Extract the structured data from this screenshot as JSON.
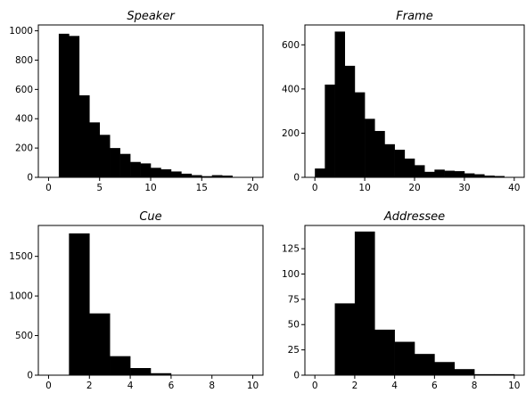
{
  "chart_data": [
    {
      "type": "bar",
      "title": "Speaker",
      "xlim": [
        -1,
        21
      ],
      "ylim": [
        0,
        1040
      ],
      "xticks": [
        0,
        5,
        10,
        15,
        20
      ],
      "yticks": [
        0,
        200,
        400,
        600,
        800,
        1000
      ],
      "bin_edges": [
        1,
        2,
        3,
        4,
        5,
        6,
        7,
        8,
        9,
        10,
        11,
        12,
        13,
        14,
        15,
        16,
        17,
        18,
        19
      ],
      "values": [
        980,
        965,
        560,
        375,
        290,
        200,
        160,
        105,
        95,
        65,
        55,
        40,
        25,
        15,
        8,
        15,
        12,
        3
      ]
    },
    {
      "type": "bar",
      "title": "Frame",
      "xlim": [
        -2,
        42
      ],
      "ylim": [
        0,
        690
      ],
      "xticks": [
        0,
        10,
        20,
        30,
        40
      ],
      "yticks": [
        0,
        200,
        400,
        600
      ],
      "bin_edges": [
        0,
        2,
        4,
        6,
        8,
        10,
        12,
        14,
        16,
        18,
        20,
        22,
        24,
        26,
        28,
        30,
        32,
        34,
        36,
        38
      ],
      "values": [
        40,
        420,
        660,
        505,
        385,
        265,
        210,
        150,
        125,
        85,
        55,
        25,
        35,
        30,
        28,
        18,
        14,
        8,
        6
      ]
    },
    {
      "type": "bar",
      "title": "Cue",
      "xlim": [
        -0.5,
        10.5
      ],
      "ylim": [
        0,
        1890
      ],
      "xticks": [
        0,
        2,
        4,
        6,
        8,
        10
      ],
      "yticks": [
        0,
        500,
        1000,
        1500
      ],
      "bin_edges": [
        0,
        1,
        2,
        3,
        4,
        5,
        6,
        7,
        8,
        9,
        10
      ],
      "values": [
        0,
        1790,
        780,
        240,
        90,
        25,
        5,
        2,
        0,
        0
      ]
    },
    {
      "type": "bar",
      "title": "Addressee",
      "xlim": [
        -0.5,
        10.5
      ],
      "ylim": [
        0,
        148
      ],
      "xticks": [
        0,
        2,
        4,
        6,
        8,
        10
      ],
      "yticks": [
        0,
        25,
        50,
        75,
        100,
        125
      ],
      "bin_edges": [
        0,
        1,
        2,
        3,
        4,
        5,
        6,
        7,
        8,
        9,
        10
      ],
      "values": [
        0,
        71,
        142,
        45,
        33,
        21,
        13,
        6,
        1,
        1
      ]
    }
  ]
}
